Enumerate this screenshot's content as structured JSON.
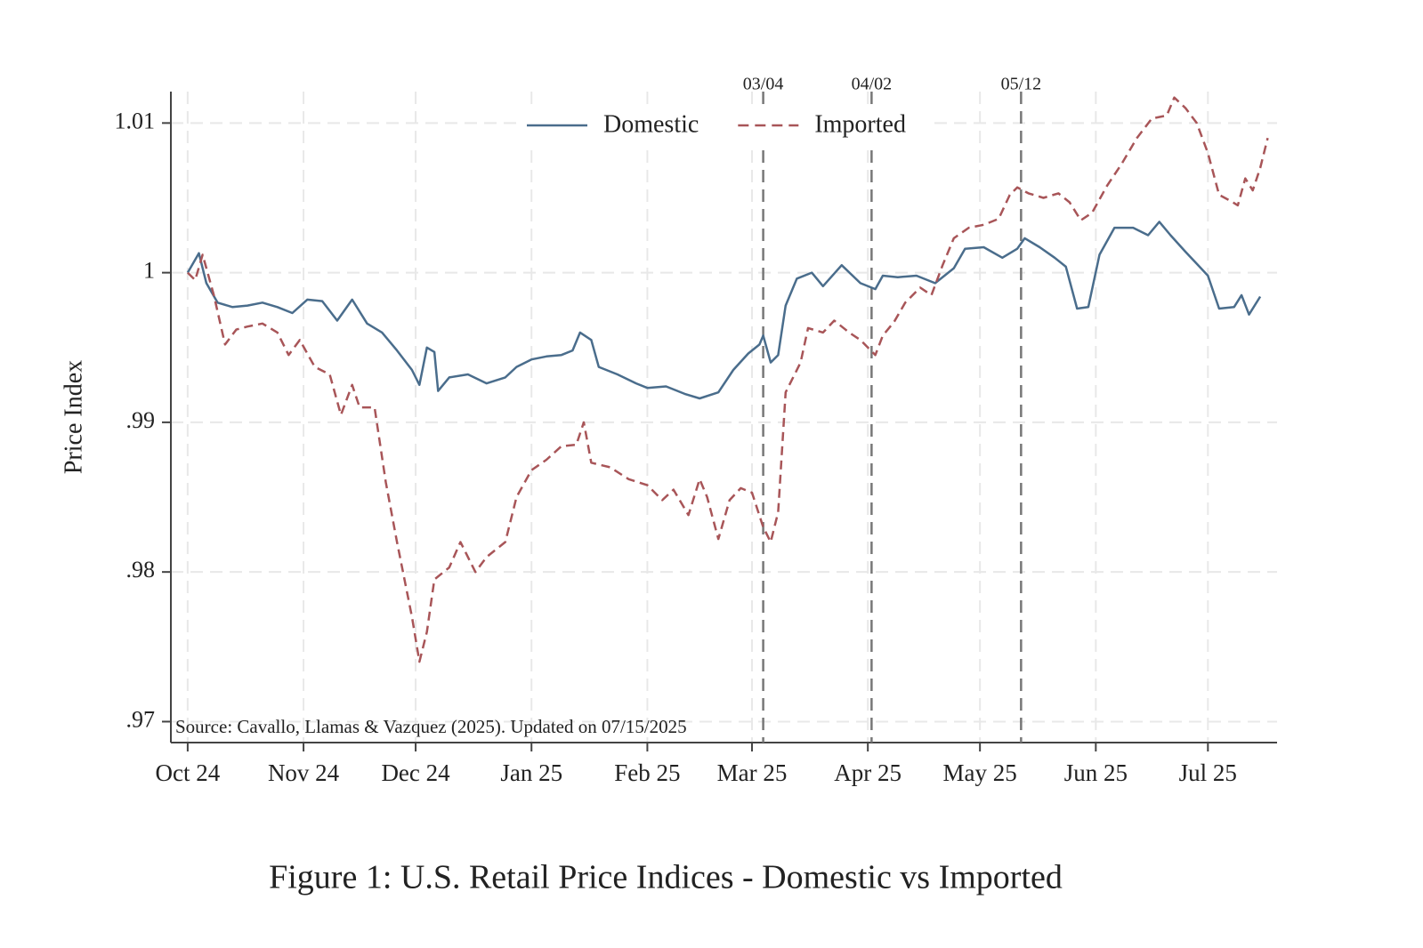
{
  "chart_data": {
    "type": "line",
    "y_label": "Price Index",
    "caption": "Figure 1: U.S. Retail Price Indices - Domestic vs Imported",
    "note": "Source: Cavallo, Llamas & Vazquez (2025). Updated on 07/15/2025",
    "xlim": [
      -4.5,
      291.5
    ],
    "xticks": [
      {
        "value": 0,
        "label": "Oct 24"
      },
      {
        "value": 31,
        "label": "Nov 24"
      },
      {
        "value": 61,
        "label": "Dec 24"
      },
      {
        "value": 92,
        "label": "Jan 25"
      },
      {
        "value": 123,
        "label": "Feb 25"
      },
      {
        "value": 151,
        "label": "Mar 25"
      },
      {
        "value": 182,
        "label": "Apr 25"
      },
      {
        "value": 212,
        "label": "May 25"
      },
      {
        "value": 243,
        "label": "Jun 25"
      },
      {
        "value": 273,
        "label": "Jul 25"
      }
    ],
    "ylim": [
      0.9686,
      1.0121
    ],
    "yticks": [
      {
        "value": 0.97,
        "label": ".97"
      },
      {
        "value": 0.98,
        "label": ".98"
      },
      {
        "value": 0.99,
        "label": ".99"
      },
      1,
      1.01
    ],
    "grid": true,
    "legend": "top",
    "annotations": [
      {
        "x": 154,
        "label": "03/04"
      },
      {
        "x": 183,
        "label": "04/02"
      },
      {
        "x": 223,
        "label": "05/12"
      }
    ],
    "series": [
      {
        "name": "Domestic",
        "color": "#4a6d8c",
        "dash": false,
        "x": [
          0,
          3,
          5,
          8,
          12,
          16,
          20,
          24,
          28,
          32,
          36,
          40,
          44,
          48,
          52,
          56,
          60,
          62,
          64,
          66,
          67,
          70,
          75,
          80,
          85,
          88,
          92,
          96,
          100,
          103,
          105,
          108,
          110,
          115,
          120,
          123,
          128,
          133,
          137,
          142,
          146,
          150,
          153,
          154,
          156,
          158,
          160,
          163,
          167,
          170,
          175,
          180,
          184,
          186,
          190,
          195,
          200,
          205,
          208,
          213,
          218,
          222,
          224,
          228,
          232,
          235,
          238,
          241,
          244,
          248,
          253,
          257,
          260,
          263,
          267,
          270,
          273,
          276,
          280,
          282,
          284,
          287
        ],
        "values": [
          1.0,
          1.0013,
          0.9993,
          0.998,
          0.9977,
          0.9978,
          0.998,
          0.9977,
          0.9973,
          0.9982,
          0.9981,
          0.9968,
          0.9982,
          0.9966,
          0.996,
          0.9948,
          0.9935,
          0.9925,
          0.995,
          0.9947,
          0.9921,
          0.993,
          0.9932,
          0.9926,
          0.993,
          0.9937,
          0.9942,
          0.9944,
          0.9945,
          0.9948,
          0.996,
          0.9955,
          0.9937,
          0.9932,
          0.9926,
          0.9923,
          0.9924,
          0.9919,
          0.9916,
          0.992,
          0.9935,
          0.9946,
          0.9952,
          0.9958,
          0.994,
          0.9945,
          0.9978,
          0.9996,
          1.0,
          0.9991,
          1.0005,
          0.9993,
          0.9989,
          0.9998,
          0.9997,
          0.9998,
          0.9993,
          1.0003,
          1.0016,
          1.0017,
          1.001,
          1.0016,
          1.0023,
          1.0017,
          1.001,
          1.0004,
          0.9976,
          0.9977,
          1.0012,
          1.003,
          1.003,
          1.0025,
          1.0034,
          1.0025,
          1.0014,
          1.0006,
          0.9998,
          0.9976,
          0.9977,
          0.9985,
          0.9972,
          0.9984
        ]
      },
      {
        "name": "Imported",
        "color": "#a85558",
        "dash": true,
        "x": [
          0,
          2,
          4,
          7,
          10,
          13,
          16,
          20,
          24,
          27,
          30,
          34,
          38,
          41,
          44,
          46,
          50,
          53,
          56,
          60,
          62,
          64,
          66,
          70,
          73,
          77,
          80,
          85,
          88,
          92,
          96,
          100,
          104,
          106,
          108,
          113,
          118,
          123,
          127,
          130,
          134,
          137,
          139,
          142,
          145,
          148,
          151,
          154,
          156,
          158,
          160,
          164,
          166,
          170,
          173,
          177,
          180,
          184,
          186,
          189,
          192,
          196,
          199,
          202,
          205,
          209,
          213,
          217,
          220,
          222,
          225,
          229,
          233,
          236,
          239,
          242,
          246,
          250,
          254,
          258,
          262,
          264,
          267,
          270,
          273,
          276,
          279,
          281,
          283,
          285,
          287,
          289
        ],
        "values": [
          1.0,
          0.9995,
          1.0012,
          0.9985,
          0.9952,
          0.9962,
          0.9964,
          0.9966,
          0.996,
          0.9945,
          0.9955,
          0.9937,
          0.9932,
          0.9905,
          0.9925,
          0.991,
          0.991,
          0.986,
          0.982,
          0.977,
          0.974,
          0.976,
          0.9795,
          0.9803,
          0.982,
          0.98,
          0.981,
          0.982,
          0.985,
          0.9868,
          0.9875,
          0.9884,
          0.9885,
          0.99,
          0.9873,
          0.987,
          0.9862,
          0.9858,
          0.9848,
          0.9855,
          0.9838,
          0.9862,
          0.985,
          0.9822,
          0.9848,
          0.9856,
          0.9853,
          0.983,
          0.982,
          0.984,
          0.992,
          0.994,
          0.9963,
          0.996,
          0.9968,
          0.996,
          0.9955,
          0.9945,
          0.9958,
          0.9967,
          0.998,
          0.999,
          0.9985,
          1.0005,
          1.0023,
          1.003,
          1.0032,
          1.0036,
          1.0052,
          1.0057,
          1.0053,
          1.005,
          1.0053,
          1.0047,
          1.0035,
          1.004,
          1.0058,
          1.0073,
          1.009,
          1.0103,
          1.0105,
          1.0117,
          1.011,
          1.01,
          1.008,
          1.0052,
          1.0048,
          1.0045,
          1.0063,
          1.0055,
          1.007,
          1.009
        ]
      }
    ]
  }
}
